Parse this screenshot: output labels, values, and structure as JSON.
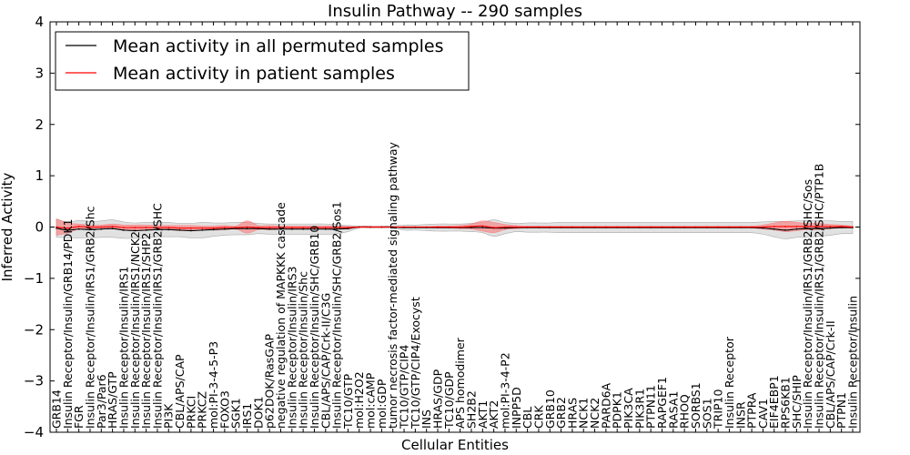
{
  "chart_data": {
    "type": "line",
    "title": "Insulin Pathway -- 290 samples",
    "xlabel": "Cellular Entities",
    "ylabel": "Inferred Activity",
    "ylim": [
      -4,
      4
    ],
    "yticks": [
      -4,
      -3,
      -2,
      -1,
      0,
      1,
      2,
      3,
      4
    ],
    "legend_location": "top-left",
    "categories": [
      "GRB14",
      "Insulin Receptor/Insulin/GRB14/PDK1",
      "FGR",
      "Insulin Receptor/Insulin/IRS1/GRB2/Shc",
      "Par3/Par6",
      "HRAS/GTP",
      "Insulin Receptor/Insulin/IRS1",
      "Insulin Receptor/Insulin/IRS1/NCK2",
      "Insulin Receptor/Insulin/IRS1/SHP2",
      "Insulin Receptor/Insulin/IRS1/GRB2/SHC",
      "PI3K",
      "CBL/APS/CAP",
      "PRKCI",
      "PRKCZ",
      "mol:PI-3-4-5-P3",
      "FOXO3",
      "SGK1",
      "IRS1",
      "DOK1",
      "p62DOK/RasGAP",
      "negative regulation of MAPKKK cascade",
      "Insulin Receptor/Insulin/IRS3",
      "Insulin Receptor/Insulin/Shc",
      "Insulin Receptor/Insulin/SHC/GRB10",
      "CBL/APS/CAP/Crk-II/C3G",
      "Insulin Receptor/Insulin/SHC/GRB2/Sos1",
      "TC10/GTP",
      "mol:H2O2",
      "mol:cAMP",
      "mol:GDP",
      "tumor necrosis factor-mediated signaling pathway",
      "TC10/GTP/CIP4",
      "TC10/GTP/CIP4/Exocyst",
      "INS",
      "HRAS/GDP",
      "TC10/GDP",
      "APS homodimer",
      "SH2B2",
      "AKT1",
      "AKT2",
      "mol:PI-3-4-P2",
      "INPP5D",
      "CBL",
      "CRK",
      "GRB10",
      "GRB2",
      "HRAS",
      "NCK1",
      "NCK2",
      "PARD6A",
      "PDPK1",
      "PIK3CA",
      "PIK3R1",
      "PTPN11",
      "RAPGEF1",
      "RASA1",
      "RHOQ",
      "SORBS1",
      "SOS1",
      "TRIP10",
      "Insulin Receptor",
      "INSR",
      "PTPRA",
      "CAV1",
      "EIF4EBP1",
      "RPS6KB1",
      "SHC/SHIP",
      "Insulin Receptor/Insulin/IRS1/GRB2/SHC/Sos",
      "Insulin Receptor/Insulin/IRS1/GRB2/SHC/PTP1B",
      "CBL/APS/CAP/Crk-II",
      "PTPN1",
      "Insulin Receptor/Insulin"
    ],
    "series": [
      {
        "name": "Mean activity in all permuted samples",
        "color": "#000000",
        "values": [
          -0.02,
          -0.06,
          -0.04,
          -0.05,
          -0.04,
          -0.03,
          -0.06,
          -0.07,
          -0.06,
          -0.05,
          -0.05,
          -0.06,
          -0.07,
          -0.06,
          -0.05,
          -0.04,
          -0.03,
          -0.03,
          -0.03,
          -0.04,
          -0.04,
          -0.04,
          -0.04,
          -0.04,
          -0.04,
          -0.04,
          -0.03,
          0.0,
          0.0,
          0.0,
          0.0,
          -0.01,
          -0.01,
          -0.01,
          -0.01,
          -0.01,
          -0.01,
          -0.01,
          -0.01,
          -0.02,
          -0.02,
          -0.01,
          -0.01,
          -0.01,
          -0.01,
          -0.01,
          -0.01,
          -0.01,
          -0.01,
          -0.01,
          -0.01,
          -0.01,
          -0.01,
          -0.01,
          -0.01,
          -0.01,
          -0.01,
          -0.01,
          -0.01,
          -0.01,
          -0.01,
          -0.01,
          -0.01,
          -0.02,
          -0.04,
          -0.06,
          -0.04,
          -0.03,
          -0.03,
          -0.02,
          -0.01,
          -0.01
        ],
        "spread": [
          0.18,
          0.15,
          0.17,
          0.16,
          0.16,
          0.17,
          0.16,
          0.15,
          0.15,
          0.14,
          0.14,
          0.13,
          0.14,
          0.15,
          0.13,
          0.12,
          0.12,
          0.12,
          0.1,
          0.1,
          0.1,
          0.1,
          0.1,
          0.1,
          0.1,
          0.09,
          0.06,
          0.02,
          0.02,
          0.02,
          0.02,
          0.05,
          0.05,
          0.06,
          0.07,
          0.07,
          0.07,
          0.08,
          0.1,
          0.16,
          0.11,
          0.08,
          0.09,
          0.09,
          0.09,
          0.1,
          0.1,
          0.1,
          0.1,
          0.1,
          0.1,
          0.1,
          0.1,
          0.1,
          0.1,
          0.1,
          0.1,
          0.1,
          0.1,
          0.1,
          0.1,
          0.1,
          0.1,
          0.12,
          0.15,
          0.17,
          0.16,
          0.16,
          0.15,
          0.14,
          0.12,
          0.12
        ]
      },
      {
        "name": "Mean activity in patient samples",
        "color": "#ff0000",
        "values": [
          0.0,
          -0.02,
          0.01,
          0.0,
          0.0,
          0.01,
          -0.01,
          -0.01,
          -0.01,
          -0.01,
          -0.01,
          -0.02,
          -0.02,
          -0.02,
          -0.02,
          -0.01,
          -0.01,
          0.0,
          -0.01,
          -0.01,
          -0.01,
          -0.01,
          -0.01,
          -0.01,
          -0.01,
          -0.01,
          -0.01,
          0.0,
          0.0,
          0.0,
          0.0,
          0.0,
          0.0,
          0.0,
          0.0,
          0.0,
          0.0,
          0.01,
          0.02,
          -0.01,
          0.0,
          0.0,
          0.0,
          0.0,
          0.0,
          0.0,
          0.0,
          0.0,
          0.0,
          0.0,
          0.0,
          0.0,
          0.0,
          0.0,
          0.0,
          0.0,
          0.0,
          0.0,
          0.0,
          0.0,
          0.0,
          0.0,
          0.0,
          0.0,
          0.01,
          0.01,
          0.01,
          0.01,
          0.01,
          0.01,
          0.01,
          0.0
        ],
        "spread": [
          0.16,
          0.1,
          0.05,
          0.04,
          0.04,
          0.05,
          0.05,
          0.05,
          0.05,
          0.04,
          0.04,
          0.05,
          0.05,
          0.04,
          0.04,
          0.04,
          0.03,
          0.12,
          0.04,
          0.04,
          0.03,
          0.03,
          0.03,
          0.03,
          0.03,
          0.03,
          0.02,
          0.01,
          0.01,
          0.01,
          0.01,
          0.01,
          0.01,
          0.01,
          0.02,
          0.02,
          0.03,
          0.05,
          0.1,
          0.1,
          0.05,
          0.03,
          0.02,
          0.02,
          0.02,
          0.02,
          0.02,
          0.02,
          0.02,
          0.02,
          0.02,
          0.02,
          0.02,
          0.02,
          0.02,
          0.02,
          0.02,
          0.02,
          0.02,
          0.02,
          0.02,
          0.02,
          0.02,
          0.04,
          0.07,
          0.1,
          0.08,
          0.06,
          0.06,
          0.04,
          0.03,
          0.02
        ]
      }
    ]
  }
}
